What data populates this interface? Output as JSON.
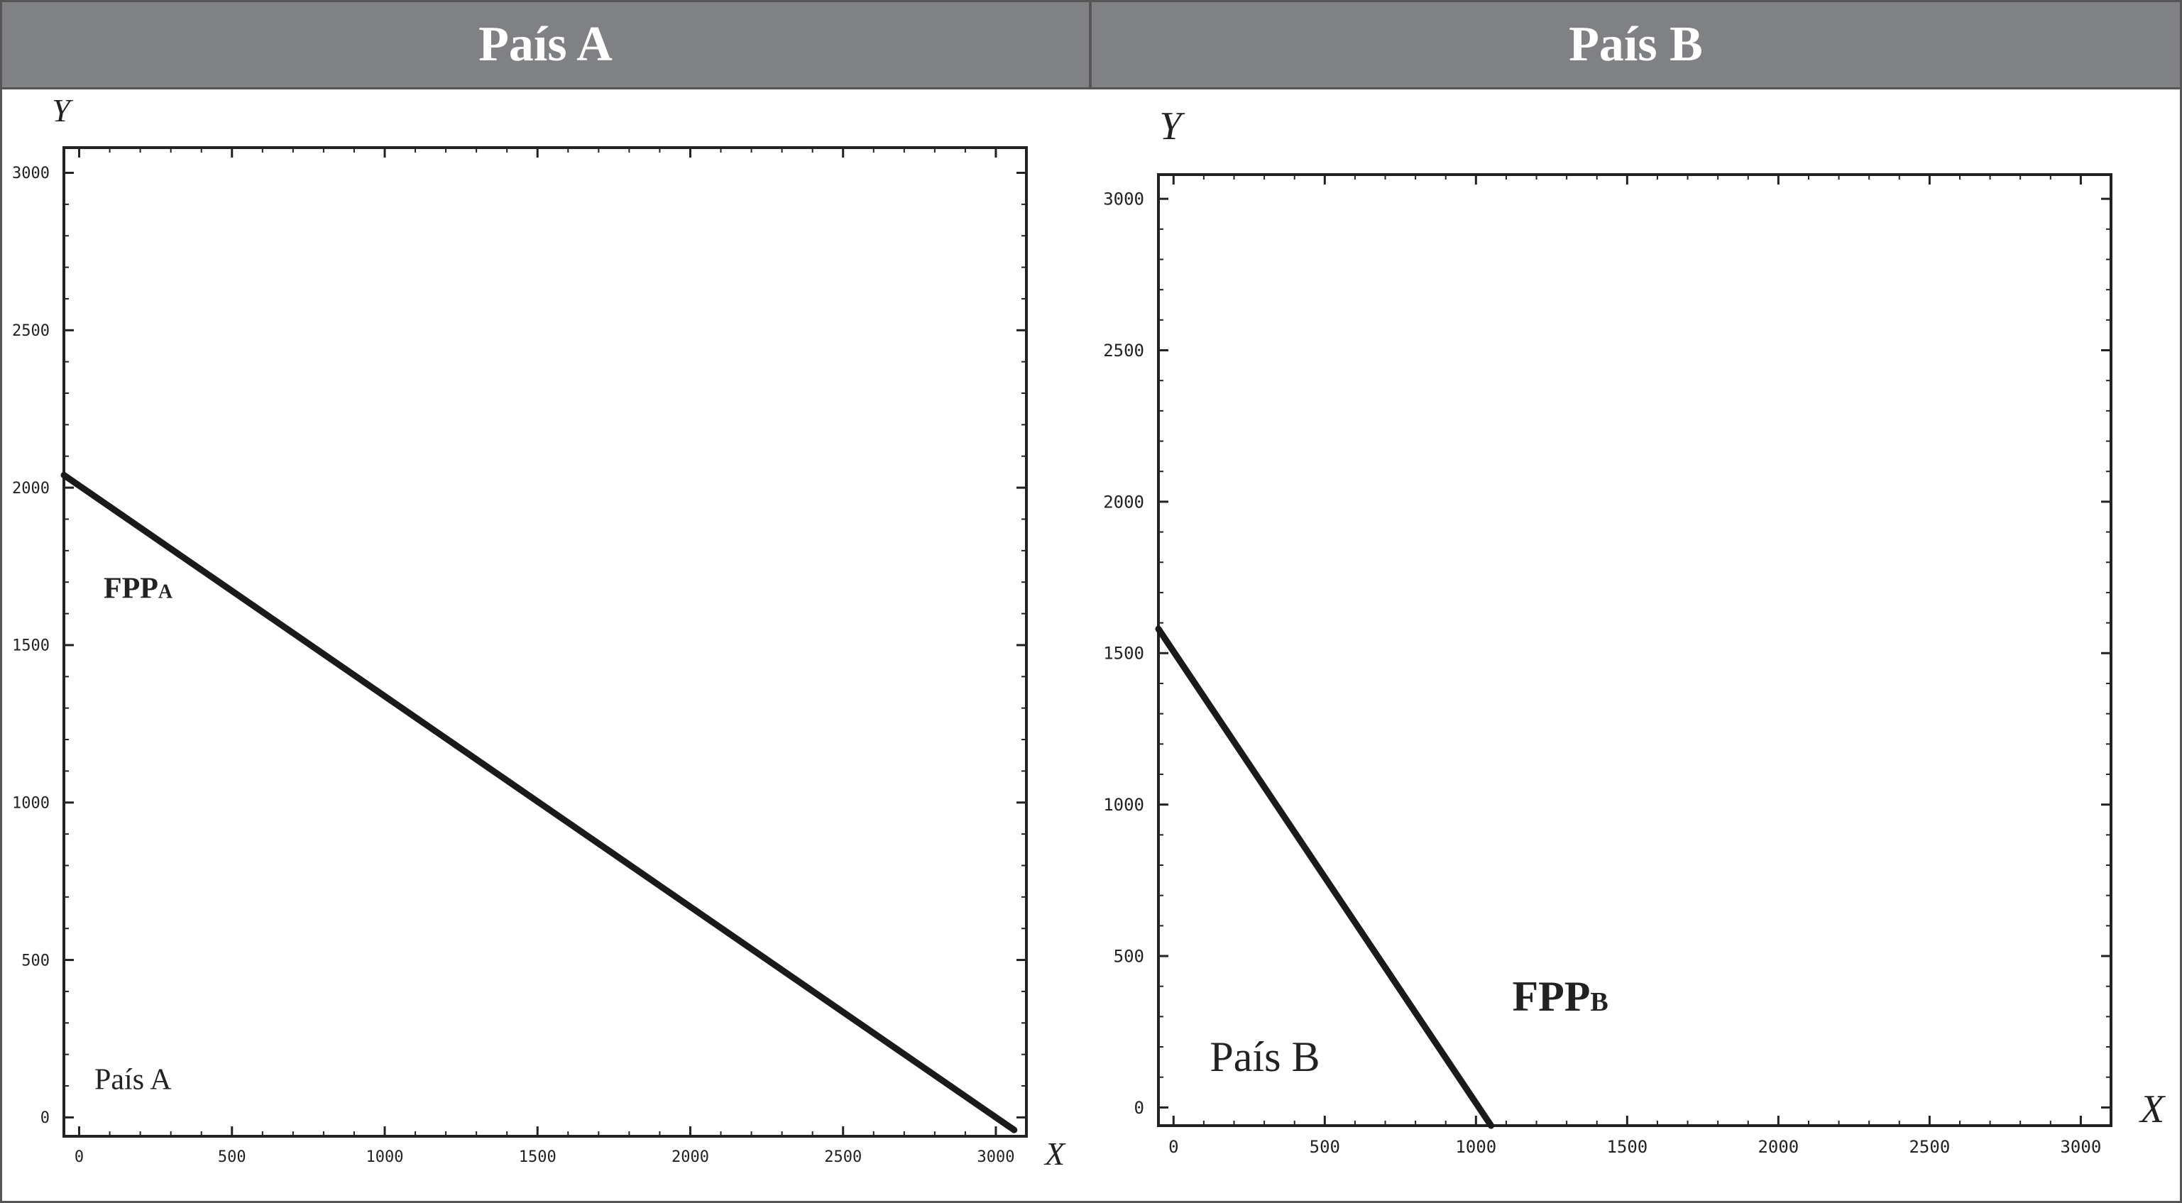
{
  "headers": {
    "a": "País A",
    "b": "País B"
  },
  "colors": {
    "header_bg": "#808184",
    "header_text": "#ffffff",
    "line": "#1a1a1a"
  },
  "chart_data": [
    {
      "type": "line",
      "panel": "País A",
      "xlabel": "X",
      "ylabel": "Y",
      "xlim": [
        -50,
        3100
      ],
      "ylim": [
        -60,
        3080
      ],
      "xticks": [
        0,
        500,
        1000,
        1500,
        2000,
        2500,
        3000
      ],
      "yticks": [
        0,
        500,
        1000,
        1500,
        2000,
        2500,
        3000
      ],
      "grid": false,
      "series": [
        {
          "name": "FPPA",
          "x": [
            -50,
            3060
          ],
          "y": [
            2040,
            -40
          ]
        }
      ],
      "annotations": [
        {
          "text": "FPPA",
          "x": 80,
          "y": 1650
        },
        {
          "text": "País A",
          "x": 50,
          "y": 90
        }
      ]
    },
    {
      "type": "line",
      "panel": "País B",
      "xlabel": "X",
      "ylabel": "Y",
      "xlim": [
        -50,
        3100
      ],
      "ylim": [
        -60,
        3080
      ],
      "xticks": [
        0,
        500,
        1000,
        1500,
        2000,
        2500,
        3000
      ],
      "yticks": [
        0,
        500,
        1000,
        1500,
        2000,
        2500,
        3000
      ],
      "grid": false,
      "series": [
        {
          "name": "FPPB",
          "x": [
            -50,
            1050
          ],
          "y": [
            1580,
            -60
          ]
        }
      ],
      "annotations": [
        {
          "text": "FPPB",
          "x": 1120,
          "y": 320
        },
        {
          "text": "País B",
          "x": 120,
          "y": 120
        }
      ]
    }
  ]
}
